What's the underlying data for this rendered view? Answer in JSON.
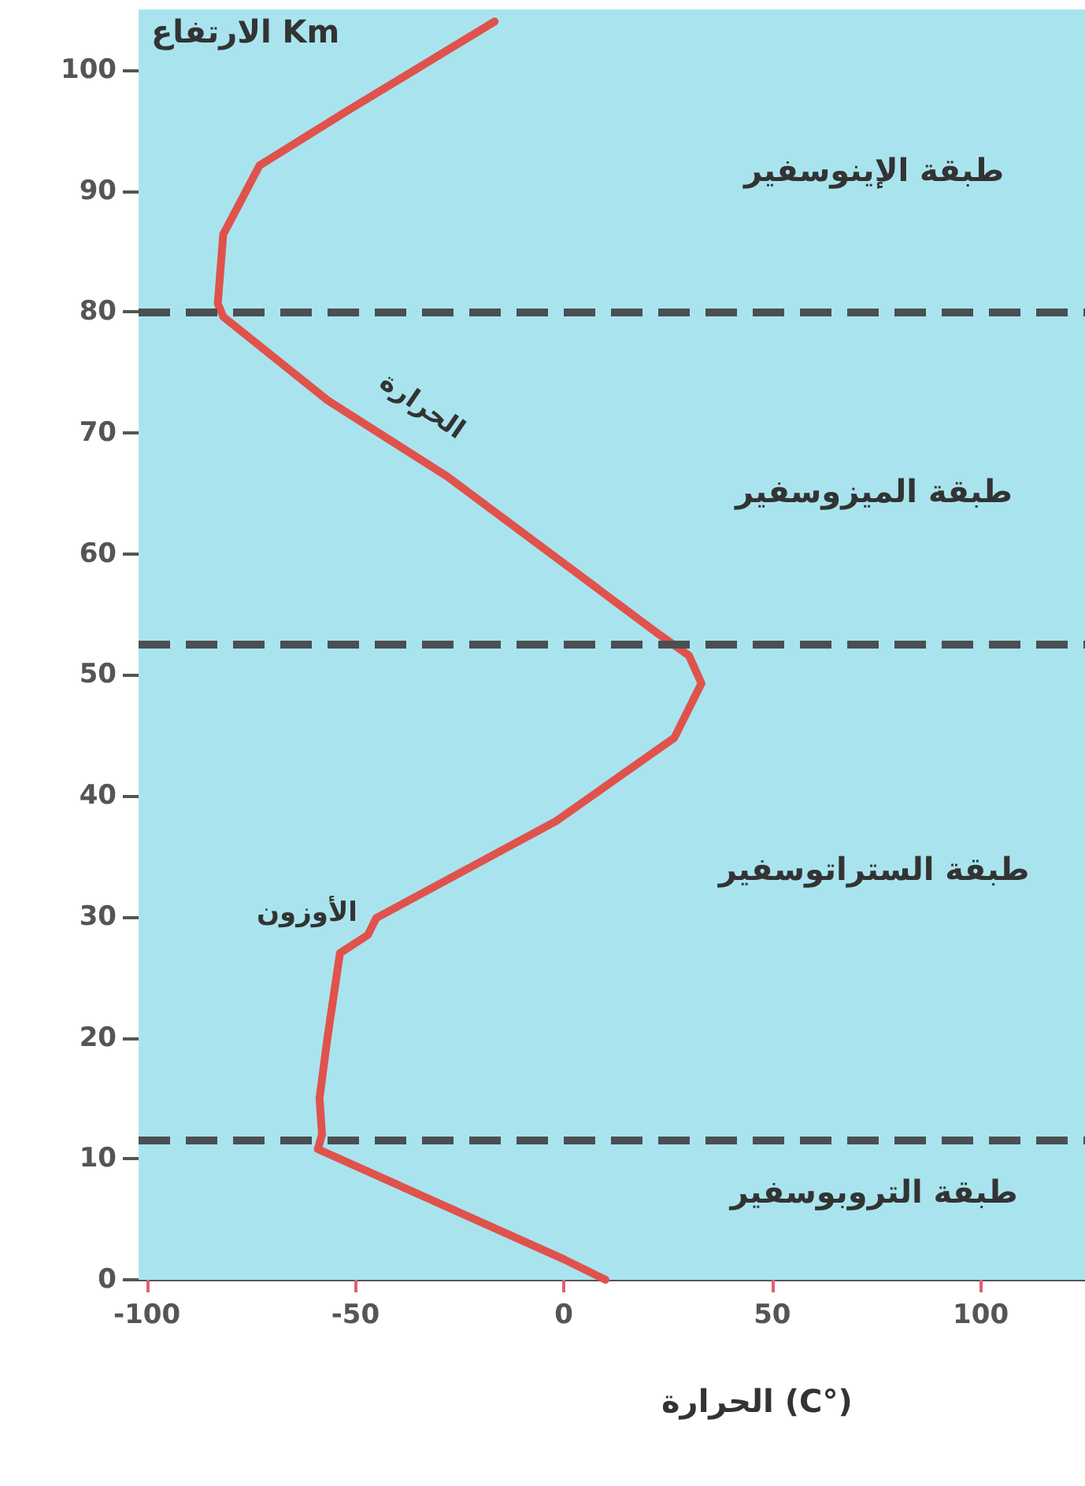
{
  "chart_data": {
    "type": "line",
    "xlabel": "الحرارة (C°)",
    "ylabel": "الارتفاع Km",
    "xlim": [
      -102,
      125
    ],
    "ylim": [
      0,
      105
    ],
    "xticks": [
      -100,
      -50,
      0,
      50,
      100
    ],
    "yticks": [
      0,
      10,
      20,
      30,
      40,
      50,
      60,
      70,
      80,
      90,
      100
    ],
    "grid": false,
    "marker": "none",
    "line_style": "solid",
    "series": [
      {
        "color": "#e0524c",
        "x": [
          10,
          0,
          -59,
          -58,
          -58.6,
          -56.7,
          -53.7,
          -47,
          -45,
          -1.9,
          26.5,
          33,
          30,
          23,
          -28,
          -56.7,
          -81.7,
          -83,
          -81.7,
          -73,
          -52,
          -16.6
        ],
        "values": [
          0,
          1.7,
          10.8,
          12,
          15,
          20,
          27,
          28.5,
          29.9,
          37.9,
          44.8,
          49.3,
          51.6,
          53.3,
          66.4,
          72.7,
          79.6,
          80.7,
          86.4,
          92.1,
          96.6,
          104
        ]
      }
    ],
    "ref_lines": [
      {
        "axis": "y",
        "value": 80,
        "color": "#4a4f52",
        "line_style": "dashed"
      },
      {
        "axis": "y",
        "value": 52.5,
        "color": "#4a4f52",
        "line_style": "dashed"
      },
      {
        "axis": "y",
        "value": 11.5,
        "color": "#4a4f52",
        "line_style": "dashed"
      }
    ],
    "annotations": [
      "طبقة الإينوسفير",
      "طبقة الميزوسفير",
      "طبقة الستراتوسفير",
      "طبقة التروبوسفير",
      "الحرارة",
      "الأوزون"
    ]
  }
}
